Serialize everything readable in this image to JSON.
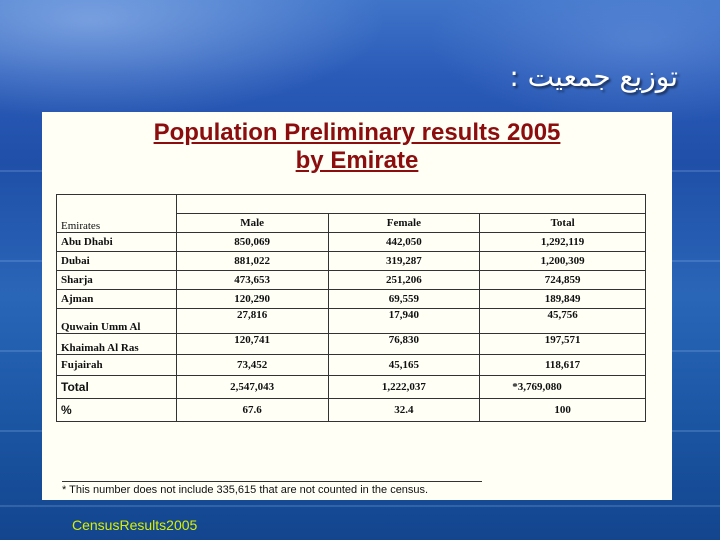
{
  "slide": {
    "title": "توزيع جمعيت :",
    "footer": "CensusResults2005"
  },
  "document": {
    "title_line1": "Population Preliminary results 2005",
    "title_line2": "by Emirate"
  },
  "table": {
    "header": {
      "emirates": "Emirates",
      "male": "Male",
      "female": "Female",
      "total": "Total"
    },
    "rows": [
      {
        "emirate": "Abu Dhabi",
        "male": "850,069",
        "female": "442,050",
        "total": "1,292,119"
      },
      {
        "emirate": "Dubai",
        "male": "881,022",
        "female": "319,287",
        "total": "1,200,309"
      },
      {
        "emirate": "Sharja",
        "male": "473,653",
        "female": "251,206",
        "total": "724,859"
      },
      {
        "emirate": "Ajman",
        "male": "120,290",
        "female": "69,559",
        "total": "189,849"
      },
      {
        "emirate": "Quwain Umm Al",
        "male": "27,816",
        "female": "17,940",
        "total": "45,756"
      },
      {
        "emirate": "Khaimah Al Ras",
        "male": "120,741",
        "female": "76,830",
        "total": "197,571"
      },
      {
        "emirate": "Fujairah",
        "male": "73,452",
        "female": "45,165",
        "total": "118,617"
      }
    ],
    "total_row": {
      "label": "Total",
      "male": "2,547,043",
      "female": "1,222,037",
      "total": "*3,769,080"
    },
    "percent_row": {
      "label": "%",
      "male": "67.6",
      "female": "32.4",
      "total": "100"
    }
  },
  "footnote": {
    "marker": "*",
    "text": "This number does not include 335,615 that are not counted in the census."
  }
}
